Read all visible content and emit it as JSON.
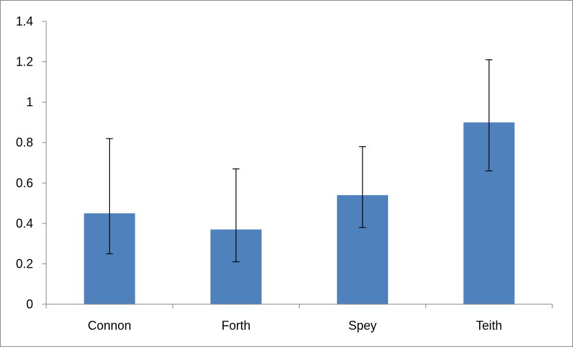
{
  "chart_data": {
    "type": "bar",
    "categories": [
      "Connon",
      "Forth",
      "Spey",
      "Teith"
    ],
    "values": [
      0.45,
      0.37,
      0.54,
      0.9
    ],
    "error_low": [
      0.25,
      0.21,
      0.38,
      0.66
    ],
    "error_high": [
      0.82,
      0.67,
      0.78,
      1.21
    ],
    "ylim": [
      0,
      1.4
    ],
    "yticks": [
      "0",
      "0.2",
      "0.4",
      "0.6",
      "0.8",
      "1",
      "1.2",
      "1.4"
    ],
    "grid": false,
    "legend": "none",
    "bar_color": "#4F81BD",
    "error_bar_color": "#000000"
  }
}
